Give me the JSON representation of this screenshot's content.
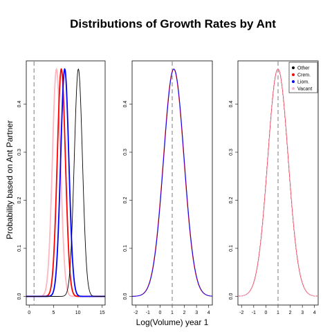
{
  "title": "Distributions of Growth Rates by Ant",
  "ylabel": "Probability based on Ant Partner",
  "xlabel": "Log(Volume) year 1",
  "colors": {
    "Other": "#000000",
    "Crem.": "#ff0000",
    "Liom.": "#0000ff",
    "Vacant": "#ffb6c1",
    "refline": "#999999"
  },
  "legend": {
    "placement": "top-right of third panel",
    "entries": [
      "Other",
      "Crem.",
      "Liom.",
      "Vacant"
    ]
  },
  "chart_data": [
    {
      "type": "line",
      "panel": 1,
      "xlim": [
        -0.6,
        15.6
      ],
      "ylim": [
        -0.018,
        0.49
      ],
      "xticks": [
        0,
        5,
        10,
        15
      ],
      "yticks": [
        0.0,
        0.1,
        0.2,
        0.3,
        0.4
      ],
      "reference_x": 1,
      "series": [
        {
          "name": "Vacant",
          "mean": 5.6,
          "sd": 0.84,
          "peak": 0.473,
          "lw": 1.8
        },
        {
          "name": "Crem.",
          "mean": 6.6,
          "sd": 0.84,
          "peak": 0.473,
          "lw": 1.8
        },
        {
          "name": "Liom.",
          "mean": 7.3,
          "sd": 0.84,
          "peak": 0.473,
          "lw": 1.8
        },
        {
          "name": "Other",
          "mean": 10.1,
          "sd": 0.84,
          "peak": 0.473,
          "lw": 0.9
        }
      ]
    },
    {
      "type": "line",
      "panel": 2,
      "xlim": [
        -2.3,
        4.3
      ],
      "ylim": [
        -0.018,
        0.49
      ],
      "xticks": [
        -2,
        -1,
        0,
        1,
        2,
        3,
        4
      ],
      "yticks": [
        0.0,
        0.1,
        0.2,
        0.3,
        0.4
      ],
      "reference_x": 1,
      "series": [
        {
          "name": "Other",
          "mean": 1.12,
          "sd": 0.843,
          "peak": 0.473,
          "lw": 0.8
        },
        {
          "name": "Vacant",
          "mean": 1.1,
          "sd": 0.843,
          "peak": 0.473,
          "lw": 0.9
        },
        {
          "name": "Crem.",
          "mean": 1.12,
          "sd": 0.843,
          "peak": 0.473,
          "lw": 0.9
        },
        {
          "name": "Liom.",
          "mean": 1.14,
          "sd": 0.843,
          "peak": 0.473,
          "lw": 0.9
        }
      ]
    },
    {
      "type": "line",
      "panel": 3,
      "xlim": [
        -2.3,
        4.3
      ],
      "ylim": [
        -0.018,
        0.49
      ],
      "xticks": [
        -2,
        -1,
        0,
        1,
        2,
        3,
        4
      ],
      "yticks": [
        0.0,
        0.1,
        0.2,
        0.3,
        0.4
      ],
      "reference_x": 1,
      "series": [
        {
          "name": "Other",
          "mean": 1.0,
          "sd": 0.843,
          "peak": 0.473,
          "lw": 0.8
        },
        {
          "name": "Liom.",
          "mean": 1.0,
          "sd": 0.843,
          "peak": 0.473,
          "lw": 0.8
        },
        {
          "name": "Crem.",
          "mean": 1.0,
          "sd": 0.843,
          "peak": 0.473,
          "lw": 0.9
        },
        {
          "name": "Vacant",
          "mean": 1.02,
          "sd": 0.843,
          "peak": 0.473,
          "lw": 0.9
        }
      ]
    }
  ]
}
